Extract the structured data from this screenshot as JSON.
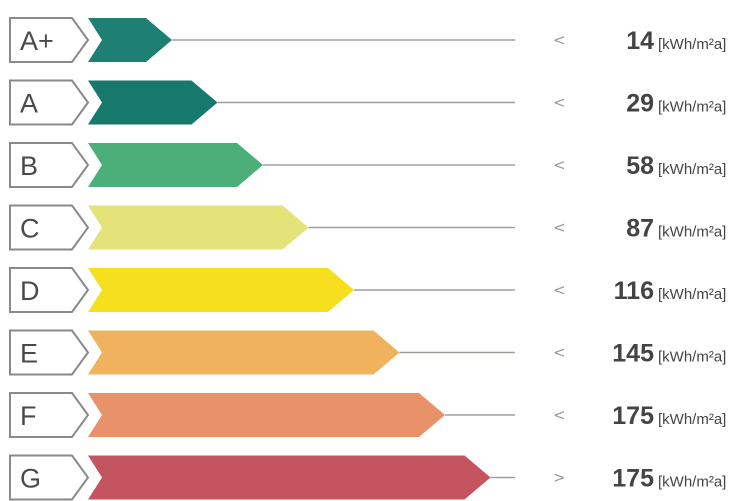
{
  "chart_data": {
    "type": "bar",
    "orientation": "horizontal",
    "unit": "[kWh/m²a]",
    "rows": [
      {
        "class": "A+",
        "value": 14,
        "color": "#1e8072",
        "symbol": "<"
      },
      {
        "class": "A",
        "value": 29,
        "color": "#17796b",
        "symbol": "<"
      },
      {
        "class": "B",
        "value": 58,
        "color": "#4caf7a",
        "symbol": "<"
      },
      {
        "class": "C",
        "value": 87,
        "color": "#e3e37a",
        "symbol": "<"
      },
      {
        "class": "D",
        "value": 116,
        "color": "#f6e01e",
        "symbol": "<"
      },
      {
        "class": "E",
        "value": 145,
        "color": "#f0b25c",
        "symbol": "<"
      },
      {
        "class": "F",
        "value": 175,
        "color": "#e99168",
        "symbol": "<"
      },
      {
        "class": "G",
        "value": 175,
        "color": "#c4545f",
        "symbol": ">"
      }
    ]
  }
}
